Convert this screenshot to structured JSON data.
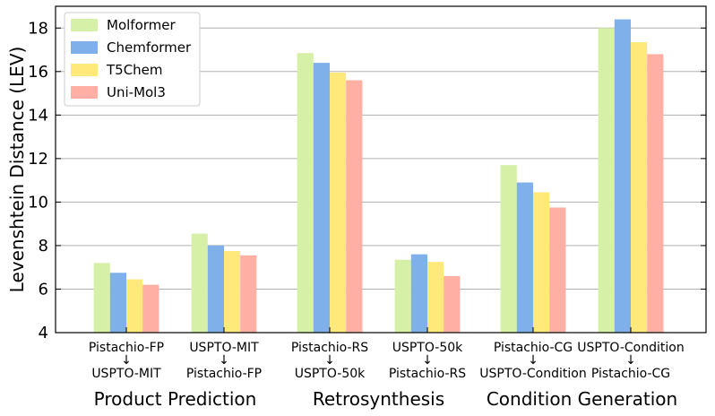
{
  "chart_data": {
    "type": "bar",
    "title": "",
    "xlabel": "",
    "ylabel": "Levenshtein Distance (LEV)",
    "ylim": [
      4,
      19
    ],
    "yticks": [
      4,
      6,
      8,
      10,
      12,
      14,
      16,
      18
    ],
    "grid": "horizontal",
    "legend_position": "top-left",
    "categories": [
      {
        "top": "Pistachio-FP",
        "arrow": "↓",
        "bottom": "USPTO-MIT"
      },
      {
        "top": "USPTO-MIT",
        "arrow": "↓",
        "bottom": "Pistachio-FP"
      },
      {
        "top": "Pistachio-RS",
        "arrow": "↓",
        "bottom": "USPTO-50k"
      },
      {
        "top": "USPTO-50k",
        "arrow": "↓",
        "bottom": "Pistachio-RS"
      },
      {
        "top": "Pistachio-CG",
        "arrow": "↓",
        "bottom": "USPTO-Condition"
      },
      {
        "top": "USPTO-Condition",
        "arrow": "↓",
        "bottom": "Pistachio-CG"
      }
    ],
    "groups": [
      "Product Prediction",
      "Retrosynthesis",
      "Condition Generation"
    ],
    "series": [
      {
        "name": "Molformer",
        "color": "#d7f0a8",
        "values": [
          7.2,
          8.55,
          16.85,
          7.35,
          11.7,
          18.0
        ]
      },
      {
        "name": "Chemformer",
        "color": "#7fb0ea",
        "values": [
          6.75,
          8.0,
          16.4,
          7.6,
          10.9,
          18.4
        ]
      },
      {
        "name": "T5Chem",
        "color": "#ffe97a",
        "values": [
          6.45,
          7.75,
          15.95,
          7.25,
          10.45,
          17.35
        ]
      },
      {
        "name": "Uni-Mol3",
        "color": "#ffafa3",
        "values": [
          6.2,
          7.55,
          15.6,
          6.6,
          9.75,
          16.8
        ]
      }
    ]
  }
}
